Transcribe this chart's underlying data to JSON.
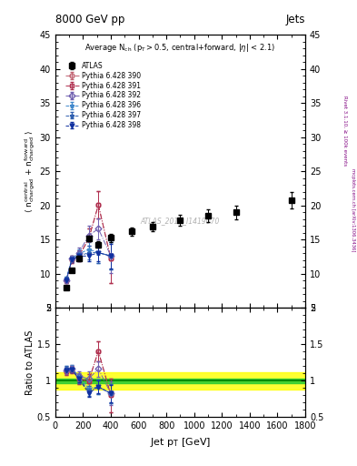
{
  "title_top": "8000 GeV pp",
  "title_right": "Jets",
  "watermark": "ATLAS_2016_I1419070",
  "right_label1": "Rivet 3.1.10, ≥ 100k events",
  "right_label2": "mcplots.cern.ch [arXiv:1306.3436]",
  "atlas_x": [
    80,
    120,
    170,
    240,
    310,
    400,
    550,
    700,
    900,
    1100,
    1300,
    1700
  ],
  "atlas_y": [
    8.0,
    10.5,
    12.3,
    15.2,
    14.3,
    15.3,
    16.2,
    16.9,
    17.9,
    18.5,
    19.0,
    20.8
  ],
  "atlas_yerr": [
    0.3,
    0.3,
    0.3,
    0.4,
    0.5,
    0.6,
    0.6,
    0.7,
    0.8,
    0.9,
    1.0,
    1.2
  ],
  "pythia_x": [
    80,
    120,
    170,
    240,
    310,
    400
  ],
  "p390_y": [
    9.0,
    12.1,
    12.6,
    15.1,
    20.1,
    12.2
  ],
  "p391_y": [
    9.0,
    12.1,
    12.6,
    15.1,
    20.1,
    12.2
  ],
  "p392_y": [
    9.1,
    12.2,
    13.1,
    15.6,
    16.6,
    12.6
  ],
  "p396_y": [
    9.3,
    12.3,
    12.9,
    13.6,
    13.1,
    12.6
  ],
  "p397_y": [
    9.3,
    12.1,
    12.6,
    13.1,
    13.1,
    12.6
  ],
  "p398_y": [
    9.1,
    12.1,
    12.6,
    12.6,
    13.1,
    12.6
  ],
  "p390_yerr": [
    0.4,
    0.5,
    0.8,
    1.5,
    2.0,
    3.5
  ],
  "p391_yerr": [
    0.4,
    0.5,
    0.8,
    1.5,
    2.0,
    3.5
  ],
  "p392_yerr": [
    0.4,
    0.5,
    0.8,
    1.5,
    1.5,
    2.5
  ],
  "p396_yerr": [
    0.3,
    0.4,
    0.7,
    1.0,
    1.5,
    2.0
  ],
  "p397_yerr": [
    0.3,
    0.4,
    0.7,
    1.0,
    1.5,
    2.0
  ],
  "p398_yerr": [
    0.3,
    0.4,
    0.6,
    0.8,
    1.2,
    1.8
  ],
  "ylim_main": [
    5,
    45
  ],
  "ylim_ratio": [
    0.5,
    2.0
  ],
  "xlim": [
    0,
    1800
  ],
  "color_390": "#c06070",
  "color_391": "#b03050",
  "color_392": "#7060b0",
  "color_396": "#4088cc",
  "color_397": "#3060b0",
  "color_398": "#1030a0",
  "green_band": [
    0.97,
    1.03
  ],
  "yellow_band": [
    0.88,
    1.12
  ],
  "yticks_main": [
    5,
    10,
    15,
    20,
    25,
    30,
    35,
    40,
    45
  ],
  "yticks_ratio": [
    0.5,
    1.0,
    1.5,
    2.0
  ],
  "xticks": [
    0,
    200,
    400,
    600,
    800,
    1000,
    1200,
    1400,
    1600,
    1800
  ],
  "xticklabels": [
    "0",
    "200",
    "400",
    "600",
    "800",
    "1000",
    "1200",
    "1400",
    "1600",
    "1800"
  ]
}
